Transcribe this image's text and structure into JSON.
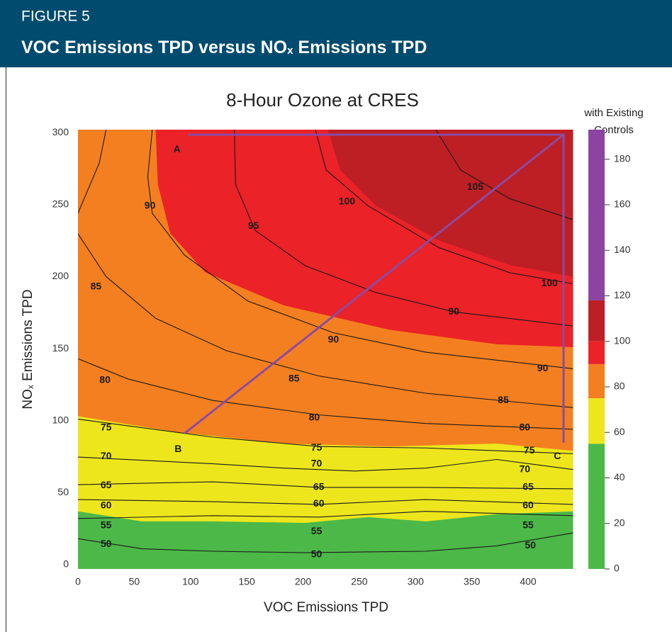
{
  "header": {
    "figure": "FIGURE 5",
    "title": [
      "VOC Emissions TPD versus NO",
      "x",
      " Emissions TPD"
    ]
  },
  "chart_data": {
    "type": "contour",
    "title": "8-Hour Ozone at CRES",
    "x_label": "VOC Emissions TPD",
    "y_label": [
      "NO",
      "x",
      " Emissions TPD"
    ],
    "xlim": [
      0,
      440
    ],
    "ylim": [
      0,
      305
    ],
    "xticks": [
      0,
      50,
      100,
      150,
      200,
      250,
      300,
      350,
      400
    ],
    "yticks": [
      0,
      50,
      100,
      150,
      200,
      250,
      300
    ],
    "regions": [
      {
        "color": "#f47f20"
      },
      {
        "color": "#ede61c",
        "side": "below",
        "boundary": {
          "x": [
            0,
            88,
            183,
            277,
            372,
            440
          ],
          "y": [
            106,
            95,
            87,
            85,
            87,
            82
          ]
        }
      },
      {
        "color": "#4cb848",
        "side": "below",
        "boundary": {
          "x": [
            0,
            57,
            120,
            202,
            258,
            309,
            372,
            440
          ],
          "y": [
            40,
            33,
            33,
            32,
            36,
            33,
            38,
            40
          ]
        }
      },
      {
        "color": "#eb2227",
        "side": "above",
        "boundary": {
          "x": [
            69,
            71,
            82,
            113,
            183,
            277,
            372,
            440
          ],
          "y": [
            305,
            267,
            233,
            206,
            183,
            166,
            156,
            154
          ]
        }
      },
      {
        "color": "#bd1f24",
        "side": "above",
        "boundary": {
          "x": [
            222,
            233,
            265,
            321,
            384,
            440
          ],
          "y": [
            305,
            277,
            252,
            228,
            211,
            203
          ]
        }
      }
    ],
    "contours": [
      {
        "x": [
          0,
          57,
          120,
          202,
          309,
          372,
          440
        ],
        "y": [
          21,
          14,
          12.3,
          11.3,
          12.3,
          16,
          25
        ]
      },
      {
        "x": [
          0,
          120,
          214,
          309,
          440
        ],
        "y": [
          35,
          37,
          36,
          40,
          37
        ]
      },
      {
        "x": [
          0,
          120,
          214,
          309,
          440
        ],
        "y": [
          48.2,
          46.7,
          44.8,
          48.2,
          44.8
        ]
      },
      {
        "x": [
          0,
          120,
          214,
          309,
          440
        ],
        "y": [
          58.5,
          60.5,
          56.6,
          56.6,
          55.6
        ]
      },
      {
        "x": [
          0,
          120,
          183,
          246,
          309,
          372,
          440
        ],
        "y": [
          77.7,
          73,
          70,
          68,
          70,
          76,
          69
        ]
      },
      {
        "x": [
          0,
          120,
          214,
          309,
          440
        ],
        "y": [
          104,
          91.5,
          85,
          84,
          80
        ]
      },
      {
        "x": [
          0,
          44,
          120,
          214,
          309,
          440
        ],
        "y": [
          146,
          132,
          117,
          107,
          101,
          97
        ]
      },
      {
        "x": [
          0,
          25,
          69,
          132,
          214,
          309,
          440
        ],
        "y": [
          232.7,
          203,
          174,
          151.5,
          134,
          122,
          112
        ]
      },
      {
        "x": [
          66,
          62,
          66,
          94.5,
          151,
          227,
          309,
          440
        ],
        "y": [
          305,
          272,
          247,
          218,
          186,
          164,
          150.5,
          139
        ]
      },
      {
        "x": [
          139,
          140,
          157.5,
          202,
          264.5,
          334,
          440
        ],
        "y": [
          305,
          267,
          235,
          210.5,
          192,
          178.5,
          168.7
        ]
      },
      {
        "x": [
          211,
          220.5,
          258,
          321,
          384,
          440
        ],
        "y": [
          305,
          277,
          252,
          223,
          205.6,
          198
        ]
      },
      {
        "x": [
          318,
          340,
          384,
          440
        ],
        "y": [
          305,
          277,
          257,
          242.5
        ]
      },
      {
        "x": [
          25,
          19,
          0
        ],
        "y": [
          305,
          282,
          247
        ]
      }
    ],
    "contour_labels": [
      {
        "level": 50,
        "x": 25,
        "y": 17
      },
      {
        "level": 50,
        "x": 212,
        "y": 10
      },
      {
        "level": 50,
        "x": 402,
        "y": 16
      },
      {
        "level": 55,
        "x": 25,
        "y": 30
      },
      {
        "level": 55,
        "x": 212,
        "y": 26
      },
      {
        "level": 55,
        "x": 400,
        "y": 30
      },
      {
        "level": 60,
        "x": 25,
        "y": 44
      },
      {
        "level": 60,
        "x": 214,
        "y": 45
      },
      {
        "level": 60,
        "x": 400,
        "y": 44
      },
      {
        "level": 65,
        "x": 25,
        "y": 58
      },
      {
        "level": 65,
        "x": 214,
        "y": 56.6
      },
      {
        "level": 65,
        "x": 400,
        "y": 56.6
      },
      {
        "level": 70,
        "x": 25,
        "y": 78
      },
      {
        "level": 70,
        "x": 212,
        "y": 73
      },
      {
        "level": 70,
        "x": 397,
        "y": 69
      },
      {
        "level": 75,
        "x": 25,
        "y": 98
      },
      {
        "level": 75,
        "x": 212,
        "y": 84
      },
      {
        "level": 75,
        "x": 401,
        "y": 82
      },
      {
        "level": 80,
        "x": 24,
        "y": 131
      },
      {
        "level": 80,
        "x": 210,
        "y": 105
      },
      {
        "level": 80,
        "x": 397,
        "y": 98
      },
      {
        "level": 85,
        "x": 16,
        "y": 196
      },
      {
        "level": 85,
        "x": 192,
        "y": 132
      },
      {
        "level": 85,
        "x": 378,
        "y": 117
      },
      {
        "level": 90,
        "x": 64,
        "y": 252
      },
      {
        "level": 90,
        "x": 227,
        "y": 159
      },
      {
        "level": 90,
        "x": 334,
        "y": 178.5
      },
      {
        "level": 90,
        "x": 413,
        "y": 139
      },
      {
        "level": 95,
        "x": 156,
        "y": 238
      },
      {
        "level": 100,
        "x": 239,
        "y": 255
      },
      {
        "level": 100,
        "x": 419,
        "y": 198
      },
      {
        "level": 105,
        "x": 353,
        "y": 265
      }
    ],
    "paths": [
      {
        "color": "#8b4ba3",
        "x": [
          97.6,
          431.5,
          431.5
        ],
        "y": [
          301.5,
          301.5,
          87.6
        ]
      },
      {
        "color": "#8b4ba3",
        "x": [
          431.5,
          94.5
        ],
        "y": [
          301.5,
          94
        ]
      }
    ],
    "points": [
      {
        "label": "A",
        "x": 88,
        "y": 291
      },
      {
        "label": "B",
        "x": 89,
        "y": 83
      },
      {
        "label": "C",
        "x": 426,
        "y": 78
      }
    ],
    "colorbar": {
      "title": [
        "with Existing",
        "Controls"
      ],
      "lim": [
        0,
        193
      ],
      "ticks": [
        0,
        20,
        40,
        60,
        80,
        100,
        120,
        140,
        160,
        180
      ],
      "bands": [
        {
          "from": 0,
          "to": 55,
          "color": "#4cb848"
        },
        {
          "from": 55,
          "to": 75,
          "color": "#ede61c"
        },
        {
          "from": 75,
          "to": 90,
          "color": "#f47f20"
        },
        {
          "from": 90,
          "to": 100,
          "color": "#eb2227"
        },
        {
          "from": 100,
          "to": 118,
          "color": "#bd1f24"
        },
        {
          "from": 118,
          "to": 193,
          "color": "#8b44a0"
        }
      ]
    }
  }
}
